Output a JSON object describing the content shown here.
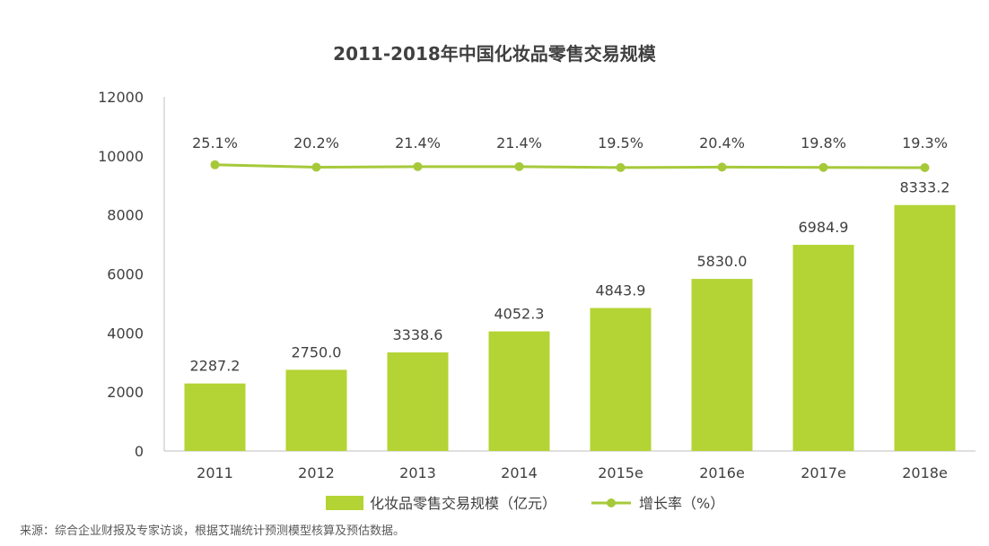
{
  "colors": {
    "bar": "#b4d334",
    "line": "#a6c93a",
    "text": "#404040",
    "axis": "#bfbfbf"
  },
  "source_note": "来源：综合企业财报及专家访谈，根据艾瑞统计预测模型核算及预估数据。",
  "chart_data": {
    "type": "bar",
    "title": "2011-2018年中国化妆品零售交易规模",
    "xlabel": "",
    "ylabel": "",
    "ylim": [
      0,
      12000
    ],
    "yticks": [
      "0",
      "2000",
      "4000",
      "6000",
      "8000",
      "10000",
      "12000"
    ],
    "grid": false,
    "legend_position": "bottom",
    "categories": [
      "2011",
      "2012",
      "2013",
      "2014",
      "2015e",
      "2016e",
      "2017e",
      "2018e"
    ],
    "series": [
      {
        "name": "化妆品零售交易规模（亿元）",
        "type": "bar",
        "values": [
          2287.2,
          2750.0,
          3338.6,
          4052.3,
          4843.9,
          5830.0,
          6984.9,
          8333.2
        ],
        "labels": [
          "2287.2",
          "2750.0",
          "3338.6",
          "4052.3",
          "4843.9",
          "5830.0",
          "6984.9",
          "8333.2"
        ]
      },
      {
        "name": "增长率（%）",
        "type": "line",
        "values": [
          25.1,
          20.2,
          21.4,
          21.4,
          19.5,
          20.4,
          19.8,
          19.3
        ],
        "labels": [
          "25.1%",
          "20.2%",
          "21.4%",
          "21.4%",
          "19.5%",
          "20.4%",
          "19.8%",
          "19.3%"
        ]
      }
    ]
  }
}
